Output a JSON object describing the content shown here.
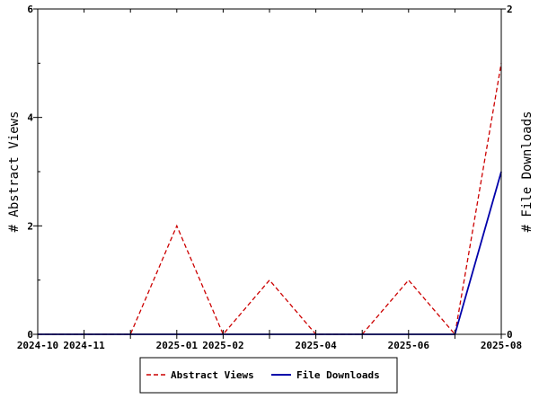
{
  "chart_data": {
    "type": "line",
    "x": [
      "2024-10",
      "2024-11",
      "2024-12",
      "2025-01",
      "2025-02",
      "2025-03",
      "2025-04",
      "2025-05",
      "2025-06",
      "2025-07",
      "2025-08"
    ],
    "xticks": [
      "2024-10",
      "2024-11",
      "2025-01",
      "2025-02",
      "2025-04",
      "2025-06",
      "2025-08"
    ],
    "xlim": [
      "2024-10",
      "2025-08"
    ],
    "ylabel": "# Abstract Views",
    "y2label": "# File Downloads",
    "ylim": [
      0,
      6
    ],
    "y2lim": [
      0,
      2
    ],
    "yticks": [
      0,
      2,
      4,
      6
    ],
    "y2ticks": [
      0,
      2
    ],
    "grid": false,
    "legend_position": "bottom",
    "series": [
      {
        "name": "Abstract Views",
        "axis": "left",
        "color": "#cc0000",
        "style": "dashed",
        "values": [
          0,
          0,
          0,
          2,
          0,
          1,
          0,
          0,
          1,
          0,
          5
        ]
      },
      {
        "name": "File Downloads",
        "axis": "right",
        "color": "#0000aa",
        "style": "solid",
        "values": [
          0,
          0,
          0,
          0,
          0,
          0,
          0,
          0,
          0,
          0,
          1
        ]
      }
    ]
  }
}
